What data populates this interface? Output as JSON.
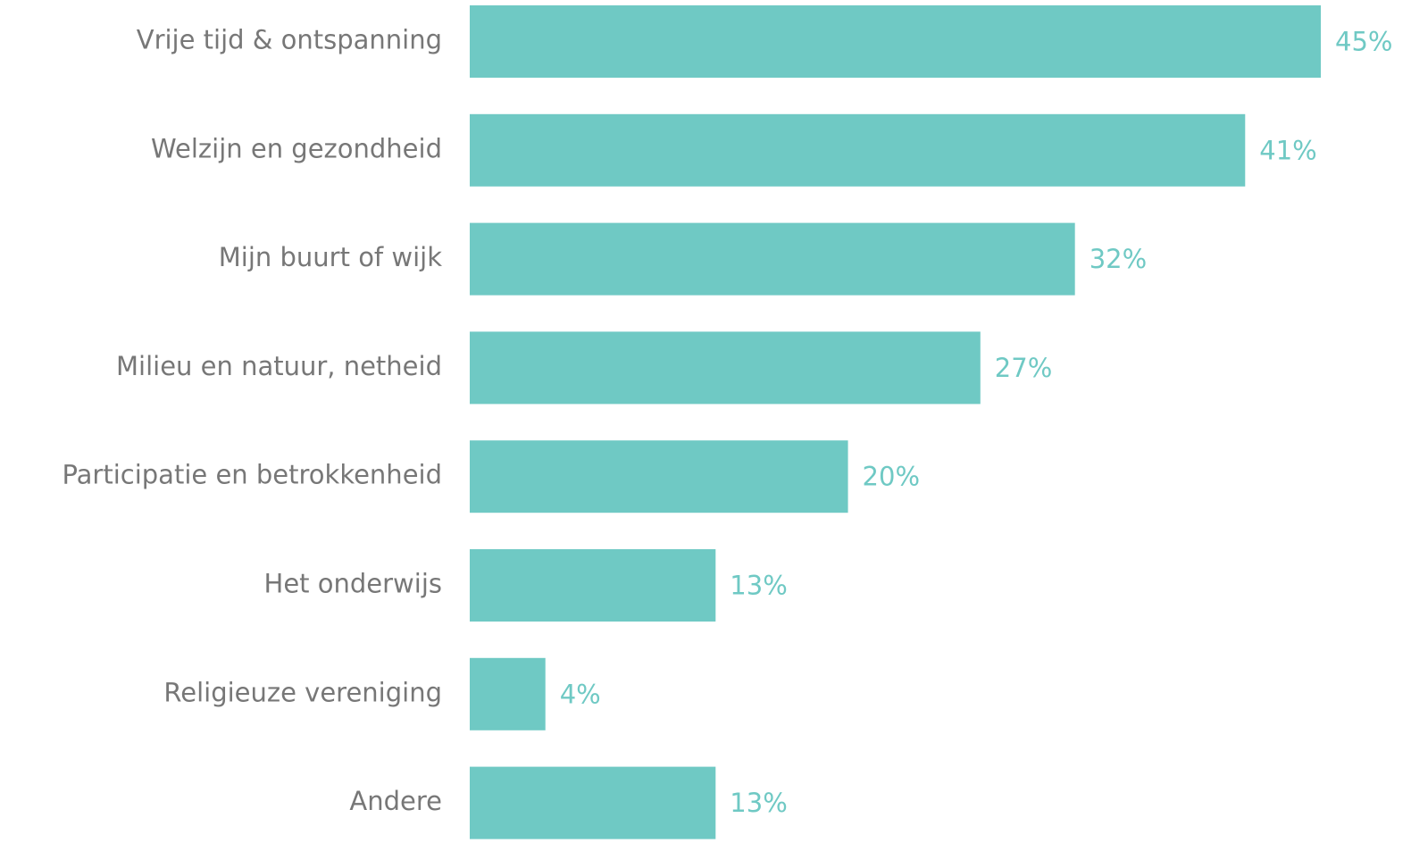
{
  "chart_data": {
    "type": "bar",
    "orientation": "horizontal",
    "categories": [
      "Vrije tijd & ontspanning",
      "Welzijn en gezondheid",
      "Mijn buurt of wijk",
      "Milieu en natuur, netheid",
      "Participatie en betrokkenheid",
      "Het onderwijs",
      "Religieuze vereniging",
      "Andere"
    ],
    "values": [
      45,
      41,
      32,
      27,
      20,
      13,
      4,
      13
    ],
    "value_labels": [
      "45%",
      "41%",
      "32%",
      "27%",
      "20%",
      "13%",
      "4%",
      "13%"
    ],
    "color": "#6fc9c4"
  }
}
